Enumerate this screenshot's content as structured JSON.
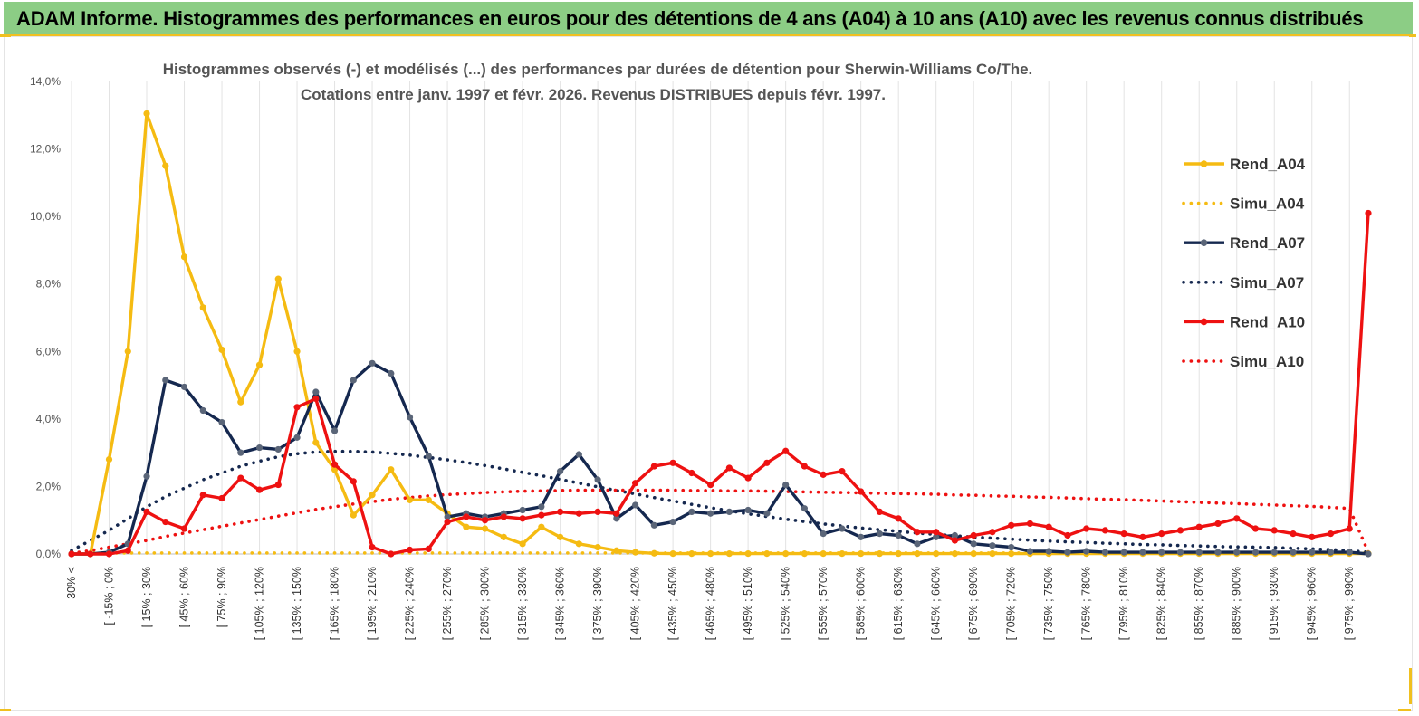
{
  "banner": {
    "title": "ADAM Informe. Histogrammes des performances en euros pour des détentions de 4 ans (A04) à 10 ans (A10) avec les revenus connus distribués"
  },
  "colors": {
    "banner_bg": "#8ccd85",
    "A04": "#f5bb12",
    "A07": "#15284f",
    "A07_marker": "#5a6578",
    "A10": "#ee1111",
    "grid": "#e3e3e3"
  },
  "chart_data": {
    "type": "line",
    "title_lines": [
      "Histogrammes observés (-) et modélisés (...) des performances par durées de détention pour Sherwin-Williams Co/The.",
      "Cotations entre janv. 1997 et févr. 2026. Revenus DISTRIBUES depuis févr. 1997."
    ],
    "xlabel": "",
    "ylabel": "",
    "ylim": [
      0,
      14
    ],
    "yticks": [
      0,
      2,
      4,
      6,
      8,
      10,
      12,
      14
    ],
    "ytick_labels": [
      "0,0%",
      "2,0%",
      "4,0%",
      "6,0%",
      "8,0%",
      "10,0%",
      "12,0%",
      "14,0%"
    ],
    "x_tick_labels": [
      "-30% <",
      "[ -15% ; 0%",
      "[ 15% ; 30%",
      "[ 45% ; 60%",
      "[ 75% ; 90%",
      "[ 105% ; 120%",
      "[ 135% ; 150%",
      "[ 165% ; 180%",
      "[ 195% ; 210%",
      "[ 225% ; 240%",
      "[ 255% ; 270%",
      "[ 285% ; 300%",
      "[ 315% ; 330%",
      "[ 345% ; 360%",
      "[ 375% ; 390%",
      "[ 405% ; 420%",
      "[ 435% ; 450%",
      "[ 465% ; 480%",
      "[ 495% ; 510%",
      "[ 525% ; 540%",
      "[ 555% ; 570%",
      "[ 585% ; 600%",
      "[ 615% ; 630%",
      "[ 645% ; 660%",
      "[ 675% ; 690%",
      "[ 705% ; 720%",
      "[ 735% ; 750%",
      "[ 765% ; 780%",
      "[ 795% ; 810%",
      "[ 825% ; 840%",
      "[ 855% ; 870%",
      "[ 885% ; 900%",
      "[ 915% ; 930%",
      "[ 945% ; 960%",
      "[ 975% ; 990%"
    ],
    "n_bins": 70,
    "series": [
      {
        "name": "Rend_A04",
        "style": "solid",
        "color_key": "A04",
        "values": [
          0,
          0,
          2.8,
          6,
          13.05,
          11.5,
          8.8,
          7.3,
          6.05,
          4.5,
          5.6,
          8.15,
          6,
          3.3,
          2.5,
          1.15,
          1.75,
          2.5,
          1.6,
          1.6,
          1.2,
          0.8,
          0.75,
          0.5,
          0.3,
          0.8,
          0.5,
          0.3,
          0.2,
          0.1,
          0.05,
          0.02,
          0.01,
          0.01,
          0.01,
          0.01,
          0.01,
          0.01,
          0.01,
          0.01,
          0.01,
          0.01,
          0.01,
          0.01,
          0.01,
          0.01,
          0.01,
          0.01,
          0.01,
          0.01,
          0.01,
          0.01,
          0.01,
          0.01,
          0.01,
          0.01,
          0.01,
          0.01,
          0.01,
          0.01,
          0.01,
          0.01,
          0.01,
          0.01,
          0.01,
          0.01,
          0.01,
          0.01,
          0.01,
          0.01
        ]
      },
      {
        "name": "Simu_A04",
        "style": "dotted",
        "color_key": "A04",
        "values": [
          0.03,
          0.03,
          0.03,
          0.03,
          0.03,
          0.03,
          0.03,
          0.03,
          0.03,
          0.03,
          0.03,
          0.03,
          0.03,
          0.03,
          0.03,
          0.03,
          0.03,
          0.03,
          0.03,
          0.03,
          0.03,
          0.03,
          0.03,
          0.03,
          0.03,
          0.03,
          0.03,
          0.03,
          0.03,
          0.03,
          0.03,
          0.03,
          0.03,
          0.03,
          0.03,
          0.03,
          0.03,
          0.03,
          0.03,
          0.03,
          0.03,
          0.03,
          0.03,
          0.03,
          0.03,
          0.03,
          0.03,
          0.03,
          0.03,
          0.03,
          0.03,
          0.03,
          0.03,
          0.03,
          0.03,
          0.03,
          0.03,
          0.03,
          0.03,
          0.03,
          0.03,
          0.03,
          0.03,
          0.03,
          0.03,
          0.03,
          0.03,
          0.03,
          0.03,
          0.03
        ]
      },
      {
        "name": "Rend_A07",
        "style": "solid",
        "color_key": "A07",
        "values": [
          0,
          0,
          0.05,
          0.3,
          2.3,
          5.15,
          4.95,
          4.25,
          3.9,
          3,
          3.15,
          3.1,
          3.45,
          4.8,
          3.65,
          5.15,
          5.65,
          5.35,
          4.05,
          2.9,
          1.1,
          1.2,
          1.1,
          1.2,
          1.3,
          1.4,
          2.45,
          2.95,
          2.2,
          1.05,
          1.45,
          0.85,
          0.95,
          1.25,
          1.2,
          1.25,
          1.3,
          1.2,
          2.05,
          1.35,
          0.6,
          0.75,
          0.5,
          0.6,
          0.55,
          0.3,
          0.5,
          0.55,
          0.3,
          0.25,
          0.2,
          0.08,
          0.08,
          0.05,
          0.08,
          0.05,
          0.05,
          0.05,
          0.05,
          0.05,
          0.05,
          0.05,
          0.05,
          0.05,
          0.05,
          0.05,
          0.05,
          0.05,
          0.05,
          0
        ]
      },
      {
        "name": "Simu_A07",
        "style": "dotted",
        "color_key": "A07",
        "values": [
          0.1,
          0.4,
          0.7,
          1.05,
          1.4,
          1.7,
          1.95,
          2.2,
          2.4,
          2.6,
          2.75,
          2.88,
          2.97,
          3.02,
          3.04,
          3.04,
          3.02,
          2.98,
          2.93,
          2.86,
          2.79,
          2.71,
          2.62,
          2.52,
          2.42,
          2.32,
          2.21,
          2.1,
          1.99,
          1.88,
          1.78,
          1.67,
          1.57,
          1.47,
          1.37,
          1.28,
          1.19,
          1.11,
          1.03,
          0.96,
          0.89,
          0.83,
          0.77,
          0.72,
          0.67,
          0.62,
          0.58,
          0.54,
          0.5,
          0.47,
          0.44,
          0.41,
          0.38,
          0.36,
          0.34,
          0.32,
          0.3,
          0.28,
          0.27,
          0.25,
          0.24,
          0.22,
          0.21,
          0.2,
          0.19,
          0.17,
          0.15,
          0.13,
          0.1,
          0.05
        ]
      },
      {
        "name": "Rend_A10",
        "style": "solid",
        "color_key": "A10",
        "values": [
          0,
          0,
          0,
          0.1,
          1.25,
          0.95,
          0.75,
          1.75,
          1.65,
          2.25,
          1.9,
          2.05,
          4.35,
          4.6,
          2.65,
          2.15,
          0.2,
          0,
          0.12,
          0.15,
          0.95,
          1.1,
          1,
          1.1,
          1.05,
          1.15,
          1.25,
          1.2,
          1.25,
          1.2,
          2.1,
          2.6,
          2.7,
          2.4,
          2.05,
          2.55,
          2.25,
          2.7,
          3.05,
          2.6,
          2.35,
          2.45,
          1.85,
          1.25,
          1.05,
          0.65,
          0.65,
          0.4,
          0.55,
          0.65,
          0.85,
          0.9,
          0.8,
          0.55,
          0.75,
          0.7,
          0.6,
          0.5,
          0.6,
          0.7,
          0.8,
          0.9,
          1.05,
          0.75,
          0.7,
          0.6,
          0.5,
          0.6,
          0.75,
          10.1
        ]
      },
      {
        "name": "Simu_A10",
        "style": "dotted",
        "color_key": "A10",
        "values": [
          0.02,
          0.1,
          0.2,
          0.3,
          0.4,
          0.52,
          0.62,
          0.72,
          0.82,
          0.92,
          1.02,
          1.12,
          1.22,
          1.32,
          1.4,
          1.48,
          1.55,
          1.62,
          1.67,
          1.72,
          1.76,
          1.79,
          1.82,
          1.84,
          1.86,
          1.87,
          1.88,
          1.89,
          1.89,
          1.89,
          1.89,
          1.89,
          1.89,
          1.88,
          1.88,
          1.87,
          1.87,
          1.86,
          1.85,
          1.84,
          1.83,
          1.82,
          1.81,
          1.8,
          1.79,
          1.78,
          1.77,
          1.75,
          1.74,
          1.72,
          1.71,
          1.69,
          1.68,
          1.66,
          1.64,
          1.62,
          1.61,
          1.59,
          1.57,
          1.55,
          1.53,
          1.51,
          1.49,
          1.47,
          1.45,
          1.43,
          1.41,
          1.38,
          1.35,
          0.05
        ]
      }
    ],
    "legend": {
      "position": "right",
      "entries": [
        "Rend_A04",
        "Simu_A04",
        "Rend_A07",
        "Simu_A07",
        "Rend_A10",
        "Simu_A10"
      ]
    },
    "grid": {
      "vertical": true,
      "horizontal": false
    }
  }
}
